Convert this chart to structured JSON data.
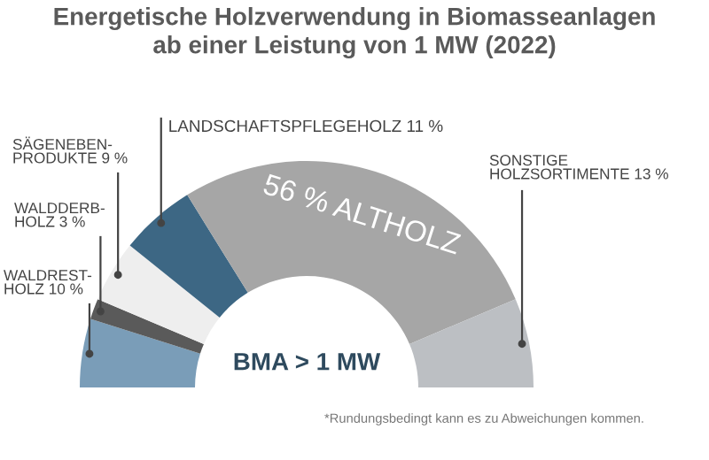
{
  "chart_data": {
    "type": "donut",
    "title": "Energetische Holzverwendung in Biomasseanlagen\nab einer Leistung von 1 MW (2022)",
    "categories": [
      "WALDREST-\nHOLZ 10 %",
      "WALDDERB-\nHOLZ 3 %",
      "SÄGENEBEN-\nPRODUKTE 9 %",
      "LANDSCHAFTSPFLEGEHOLZ 11 %",
      "56 % ALTHOLZ",
      "SONSTIGE\nHOLZSORTIMENTE 13 %"
    ],
    "values": [
      10,
      3,
      9,
      11,
      56,
      13
    ],
    "colors": [
      "#7a9db8",
      "#5a5a5a",
      "#eeeeee",
      "#3d6784",
      "#a6a6a6",
      "#bcbfc3"
    ],
    "annotations": [
      "BMA > 1 MW",
      "*Rundungsbedingt kann es zu Abweichungen kommen."
    ]
  }
}
